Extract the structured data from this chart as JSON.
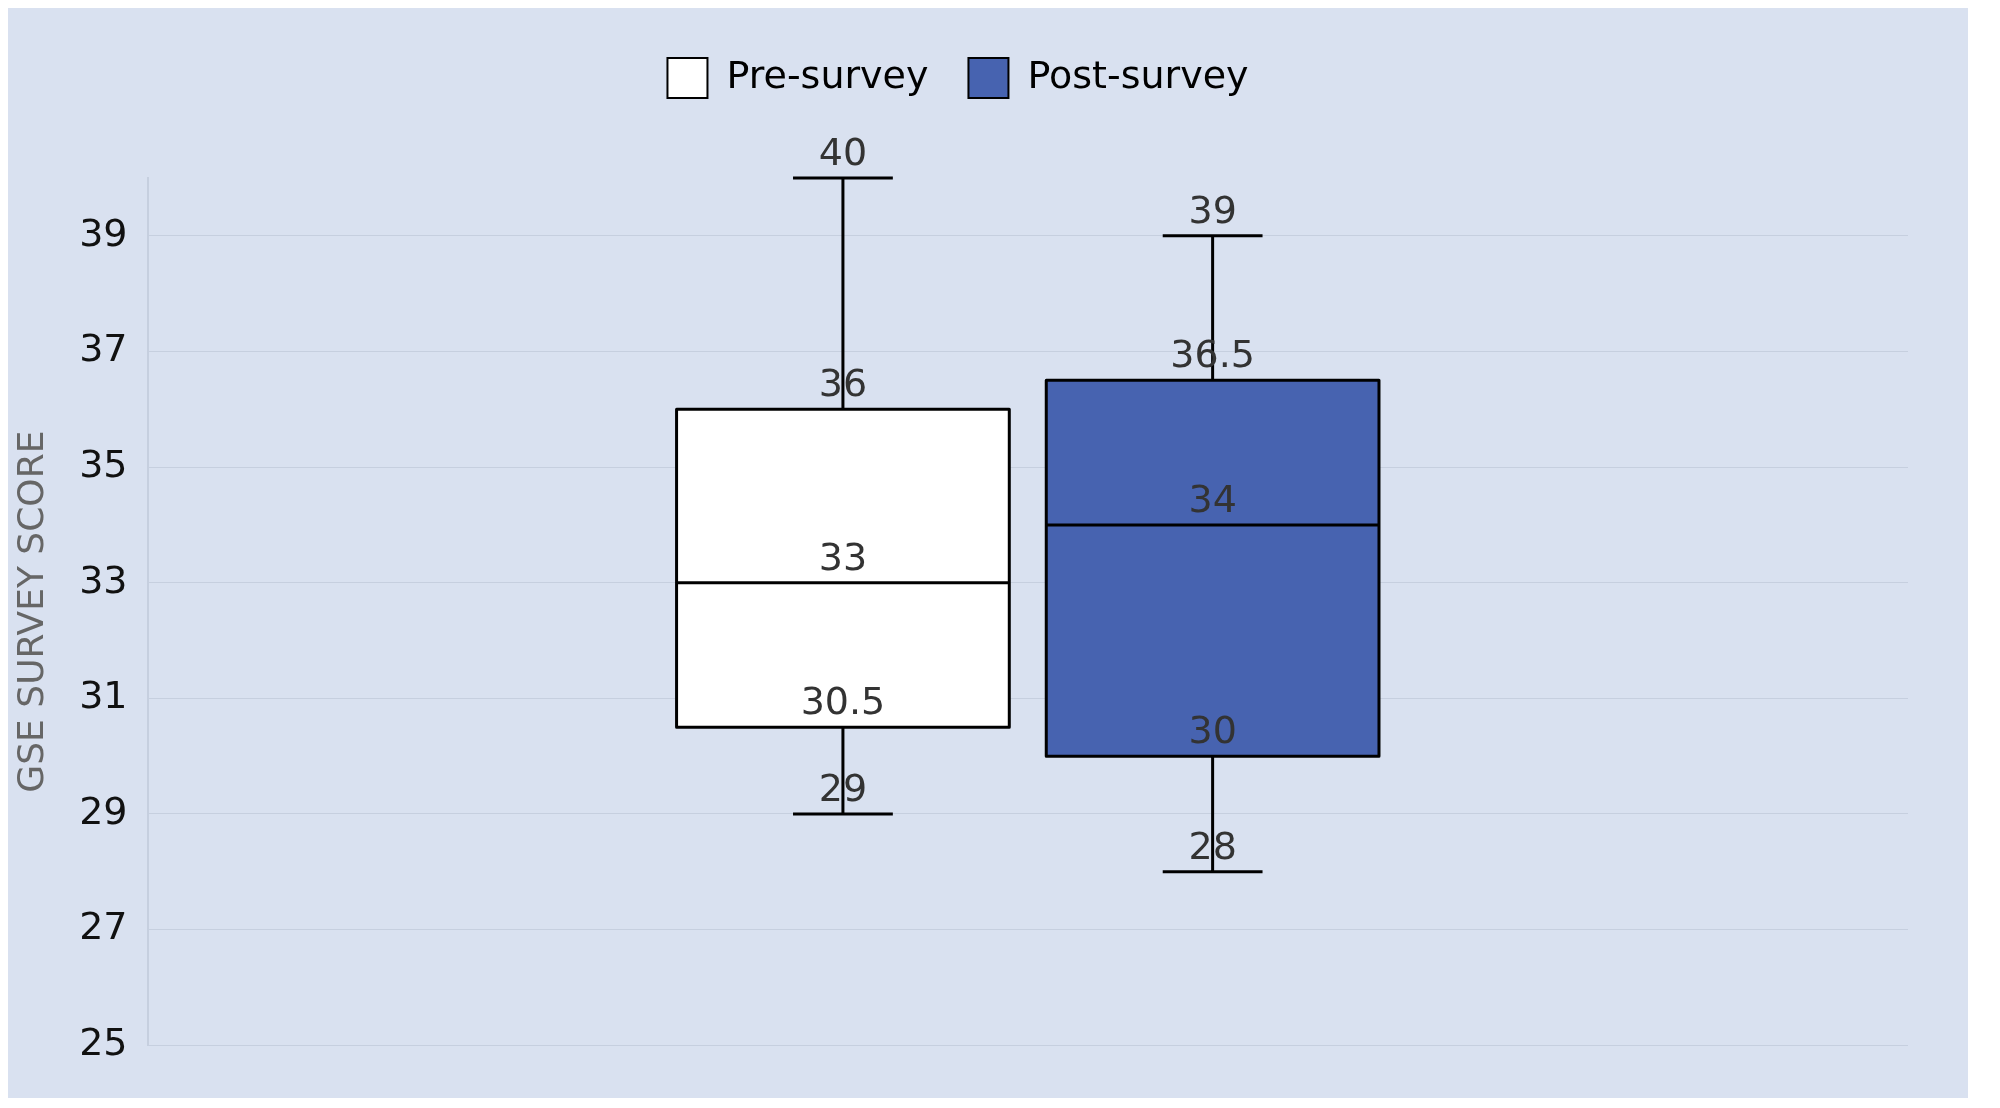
{
  "chart_data": {
    "type": "box",
    "ylabel": "GSE SURVEY SCORE",
    "categories": [
      null
    ],
    "series": [
      {
        "name": "Pre-survey",
        "color": "#ffffff",
        "boxes": [
          {
            "low": 29,
            "q1": 30.5,
            "median": 33,
            "q3": 36,
            "high": 40
          }
        ]
      },
      {
        "name": "Post-survey",
        "color": "#4763b0",
        "boxes": [
          {
            "low": 28,
            "q1": 30,
            "median": 34,
            "q3": 36.5,
            "high": 39
          }
        ]
      }
    ],
    "annotations": [
      {
        "text": "40",
        "y": 40
      },
      {
        "text": "36",
        "y": 36
      },
      {
        "text": "33",
        "y": 33
      },
      {
        "text": "30.5",
        "y": 30.5
      },
      {
        "text": "29",
        "y": 29
      },
      {
        "text": "39",
        "y": 39
      },
      {
        "text": "36.5",
        "y": 36.5
      },
      {
        "text": "34",
        "y": 34
      },
      {
        "text": "30",
        "y": 30
      },
      {
        "text": "28",
        "y": 28
      }
    ],
    "ylim": [
      25,
      40
    ],
    "yticks": [
      25,
      27,
      29,
      31,
      33,
      35,
      37,
      39
    ],
    "grid": "y",
    "legend": "top"
  }
}
